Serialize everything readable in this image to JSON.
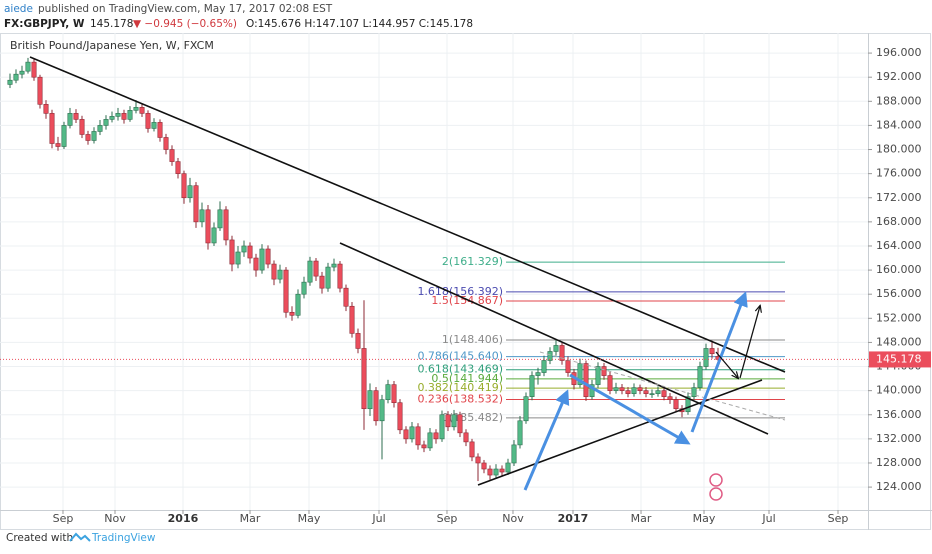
{
  "header": {
    "author": "aiede",
    "published": "published on TradingView.com, May 17, 2017 02:08 EST",
    "symbol": "FX:GBPJPY, W",
    "price": "145.178",
    "change": "▼ −0.945 (−0.65%)",
    "ohlc": "O:145.676 H:147.107 L:144.957 C:145.178"
  },
  "footer": {
    "created": "Created with",
    "brand": "TradingView"
  },
  "chart_data": {
    "type": "candlestick",
    "title": "British Pound/Japanese Yen, W, FXCM",
    "up_color": "#53b987",
    "down_color": "#eb4d5c",
    "grid": true,
    "last": 145.178,
    "last_color": "#eb4d5c",
    "xlim": [
      -1.667,
      143
    ],
    "ylim": [
      120.2,
      199
    ],
    "xticks": [
      {
        "value": 8.83,
        "label": "Sep"
      },
      {
        "value": 17.5,
        "label": "Nov"
      },
      {
        "value": 28.83,
        "label": "2016"
      },
      {
        "value": 40,
        "label": "Mar"
      },
      {
        "value": 49.83,
        "label": "May"
      },
      {
        "value": 61.5,
        "label": "Jul"
      },
      {
        "value": 72.83,
        "label": "Sep"
      },
      {
        "value": 83.83,
        "label": "Nov"
      },
      {
        "value": 93.83,
        "label": "2017"
      },
      {
        "value": 105.17,
        "label": "Mar"
      },
      {
        "value": 115.67,
        "label": "May"
      },
      {
        "value": 126.5,
        "label": "Jul"
      },
      {
        "value": 138,
        "label": "Sep"
      }
    ],
    "yticks": [
      {
        "value": 124,
        "label": "124.000"
      },
      {
        "value": 128,
        "label": "128.000"
      },
      {
        "value": 132,
        "label": "132.000"
      },
      {
        "value": 136,
        "label": "136.000"
      },
      {
        "value": 140,
        "label": "140.000"
      },
      {
        "value": 144,
        "label": "144.000"
      },
      {
        "value": 148,
        "label": "148.000"
      },
      {
        "value": 152,
        "label": "152.000"
      },
      {
        "value": 156,
        "label": "156.000"
      },
      {
        "value": 160,
        "label": "160.000"
      },
      {
        "value": 164,
        "label": "164.000"
      },
      {
        "value": 168,
        "label": "168.000"
      },
      {
        "value": 172,
        "label": "172.000"
      },
      {
        "value": 176,
        "label": "176.000"
      },
      {
        "value": 180,
        "label": "180.000"
      },
      {
        "value": 184,
        "label": "184.000"
      },
      {
        "value": 188,
        "label": "188.000"
      },
      {
        "value": 192,
        "label": "192.000"
      },
      {
        "value": 196,
        "label": "196.000"
      }
    ],
    "fib": [
      {
        "value": 161.329,
        "label": "2(161.329)",
        "color": "#3fae8a"
      },
      {
        "value": 156.392,
        "label": "1.618(156.392)",
        "color": "#4b4bb0"
      },
      {
        "value": 154.867,
        "label": "1.5(154.867)",
        "color": "#e0454b"
      },
      {
        "value": 148.406,
        "label": "1(148.406)",
        "color": "#8a8a8a"
      },
      {
        "value": 145.64,
        "label": "0.786(145.640)",
        "color": "#4f98c8"
      },
      {
        "value": 143.469,
        "label": "0.618(143.469)",
        "color": "#2f9f7a"
      },
      {
        "value": 141.944,
        "label": "0.5(141.944)",
        "color": "#5aab3c"
      },
      {
        "value": 140.419,
        "label": "0.382(140.419)",
        "color": "#98ad2b"
      },
      {
        "value": 138.532,
        "label": "0.236(138.532)",
        "color": "#e0454b"
      },
      {
        "value": 135.482,
        "label": "0(135.482)",
        "color": "#8a8a8a"
      }
    ],
    "ohlc": [
      [
        190.8,
        192.6,
        190.2,
        191.5
      ],
      [
        191.5,
        193.3,
        191.0,
        192.5
      ],
      [
        192.5,
        193.9,
        191.8,
        193.0
      ],
      [
        193.0,
        195.2,
        192.6,
        194.5
      ],
      [
        194.5,
        195.0,
        191.4,
        192.0
      ],
      [
        192.0,
        192.4,
        186.8,
        187.5
      ],
      [
        187.5,
        188.2,
        185.1,
        186.0
      ],
      [
        186.0,
        186.6,
        180.2,
        181.0
      ],
      [
        181.0,
        182.1,
        179.8,
        180.5
      ],
      [
        180.5,
        184.6,
        180.1,
        184.0
      ],
      [
        184.0,
        186.9,
        183.5,
        186.0
      ],
      [
        186.0,
        186.7,
        184.4,
        185.0
      ],
      [
        185.0,
        185.6,
        181.9,
        182.5
      ],
      [
        182.5,
        183.1,
        180.8,
        181.5
      ],
      [
        181.5,
        183.7,
        181.0,
        183.0
      ],
      [
        183.0,
        184.9,
        182.4,
        184.0
      ],
      [
        184.0,
        185.7,
        183.3,
        185.0
      ],
      [
        185.0,
        186.3,
        184.5,
        185.5
      ],
      [
        185.5,
        186.9,
        184.8,
        186.0
      ],
      [
        186.0,
        186.6,
        184.3,
        185.0
      ],
      [
        185.0,
        187.2,
        184.6,
        186.5
      ],
      [
        186.5,
        188.2,
        186.0,
        187.0
      ],
      [
        187.0,
        187.6,
        185.4,
        186.0
      ],
      [
        186.0,
        186.5,
        182.8,
        183.5
      ],
      [
        183.5,
        185.2,
        183.0,
        184.5
      ],
      [
        184.5,
        185.0,
        181.3,
        182.0
      ],
      [
        182.0,
        182.6,
        179.2,
        180.0
      ],
      [
        180.0,
        180.7,
        177.3,
        178.0
      ],
      [
        178.0,
        178.6,
        175.2,
        176.0
      ],
      [
        176.0,
        176.5,
        171.0,
        172.0
      ],
      [
        172.0,
        175.3,
        171.2,
        174.0
      ],
      [
        174.0,
        174.6,
        167.0,
        168.0
      ],
      [
        168.0,
        171.2,
        167.1,
        170.0
      ],
      [
        170.0,
        170.8,
        163.4,
        164.5
      ],
      [
        164.5,
        167.9,
        164.0,
        167.0
      ],
      [
        167.0,
        171.4,
        166.5,
        170.0
      ],
      [
        170.0,
        170.6,
        164.1,
        165.0
      ],
      [
        165.0,
        165.7,
        159.8,
        161.0
      ],
      [
        161.0,
        164.0,
        160.3,
        163.0
      ],
      [
        163.0,
        164.9,
        162.2,
        164.0
      ],
      [
        164.0,
        164.6,
        161.1,
        162.0
      ],
      [
        162.0,
        162.7,
        158.9,
        160.0
      ],
      [
        160.0,
        164.3,
        159.4,
        163.5
      ],
      [
        163.5,
        164.1,
        160.3,
        161.0
      ],
      [
        161.0,
        161.6,
        157.5,
        158.5
      ],
      [
        158.5,
        160.9,
        157.8,
        160.0
      ],
      [
        160.0,
        160.5,
        152.1,
        153.0
      ],
      [
        153.0,
        154.0,
        151.6,
        152.5
      ],
      [
        152.5,
        156.8,
        152.0,
        156.0
      ],
      [
        156.0,
        158.9,
        155.3,
        158.0
      ],
      [
        158.0,
        162.2,
        157.4,
        161.5
      ],
      [
        161.5,
        162.0,
        158.2,
        159.0
      ],
      [
        159.0,
        159.7,
        156.1,
        157.0
      ],
      [
        157.0,
        161.2,
        156.4,
        160.5
      ],
      [
        160.5,
        161.9,
        159.8,
        161.0
      ],
      [
        161.0,
        161.5,
        156.3,
        157.0
      ],
      [
        157.0,
        157.6,
        153.2,
        154.0
      ],
      [
        154.0,
        154.7,
        148.8,
        149.5
      ],
      [
        149.5,
        150.3,
        146.2,
        147.0
      ],
      [
        147.0,
        155.0,
        133.5,
        137.0
      ],
      [
        137.0,
        141.2,
        135.8,
        140.0
      ],
      [
        140.0,
        140.6,
        134.2,
        135.0
      ],
      [
        135.0,
        139.3,
        128.6,
        138.5
      ],
      [
        138.5,
        141.8,
        137.9,
        141.0
      ],
      [
        141.0,
        141.6,
        137.2,
        138.0
      ],
      [
        138.0,
        138.6,
        132.8,
        133.5
      ],
      [
        133.5,
        134.1,
        131.2,
        132.0
      ],
      [
        132.0,
        134.8,
        131.4,
        134.0
      ],
      [
        134.0,
        134.6,
        130.2,
        131.0
      ],
      [
        131.0,
        131.7,
        129.8,
        130.5
      ],
      [
        130.5,
        133.8,
        130.0,
        133.0
      ],
      [
        133.0,
        133.6,
        131.2,
        132.0
      ],
      [
        132.0,
        136.7,
        131.5,
        136.0
      ],
      [
        136.0,
        136.6,
        133.3,
        134.0
      ],
      [
        134.0,
        136.8,
        133.4,
        136.0
      ],
      [
        136.0,
        136.5,
        132.3,
        133.0
      ],
      [
        133.0,
        133.6,
        130.8,
        131.5
      ],
      [
        131.5,
        132.0,
        128.3,
        129.0
      ],
      [
        129.0,
        129.6,
        125.0,
        128.0
      ],
      [
        128.0,
        128.5,
        126.3,
        127.0
      ],
      [
        127.0,
        127.6,
        125.2,
        126.0
      ],
      [
        126.0,
        127.8,
        125.5,
        127.0
      ],
      [
        127.0,
        127.6,
        125.8,
        126.5
      ],
      [
        126.5,
        128.7,
        126.0,
        128.0
      ],
      [
        128.0,
        131.8,
        127.5,
        131.0
      ],
      [
        131.0,
        135.8,
        130.4,
        135.0
      ],
      [
        135.0,
        139.7,
        134.5,
        139.0
      ],
      [
        139.0,
        143.2,
        138.4,
        142.5
      ],
      [
        142.5,
        143.8,
        141.0,
        143.0
      ],
      [
        143.0,
        145.8,
        142.4,
        145.0
      ],
      [
        145.0,
        147.2,
        144.4,
        146.5
      ],
      [
        146.5,
        148.5,
        145.8,
        147.5
      ],
      [
        147.5,
        148.1,
        144.3,
        145.0
      ],
      [
        145.0,
        145.7,
        142.3,
        143.0
      ],
      [
        143.0,
        143.6,
        140.2,
        141.0
      ],
      [
        141.0,
        145.3,
        140.5,
        144.5
      ],
      [
        144.5,
        145.0,
        138.3,
        139.0
      ],
      [
        139.0,
        141.8,
        138.5,
        141.0
      ],
      [
        141.0,
        144.7,
        140.4,
        144.0
      ],
      [
        144.0,
        144.6,
        141.8,
        142.5
      ],
      [
        142.5,
        143.1,
        139.4,
        140.0
      ],
      [
        140.0,
        141.3,
        139.5,
        140.5
      ],
      [
        140.5,
        141.1,
        139.4,
        140.0
      ],
      [
        140.0,
        140.6,
        138.9,
        139.5
      ],
      [
        139.5,
        141.2,
        139.0,
        140.5
      ],
      [
        140.5,
        141.0,
        139.4,
        140.0
      ],
      [
        140.0,
        140.6,
        138.9,
        139.5
      ],
      [
        139.5,
        140.2,
        138.8,
        139.5
      ],
      [
        139.5,
        140.7,
        139.0,
        140.0
      ],
      [
        140.0,
        140.5,
        138.4,
        139.0
      ],
      [
        139.0,
        139.6,
        137.8,
        138.5
      ],
      [
        138.5,
        139.0,
        136.4,
        137.0
      ],
      [
        137.0,
        137.6,
        135.6,
        136.5
      ],
      [
        136.5,
        139.7,
        136.0,
        139.0
      ],
      [
        139.0,
        141.3,
        138.5,
        140.5
      ],
      [
        140.5,
        144.8,
        140.0,
        144.0
      ],
      [
        144.0,
        147.8,
        143.5,
        147.0
      ],
      [
        147.0,
        148.3,
        145.3,
        146.123
      ],
      [
        145.676,
        147.107,
        144.957,
        145.178
      ]
    ]
  }
}
